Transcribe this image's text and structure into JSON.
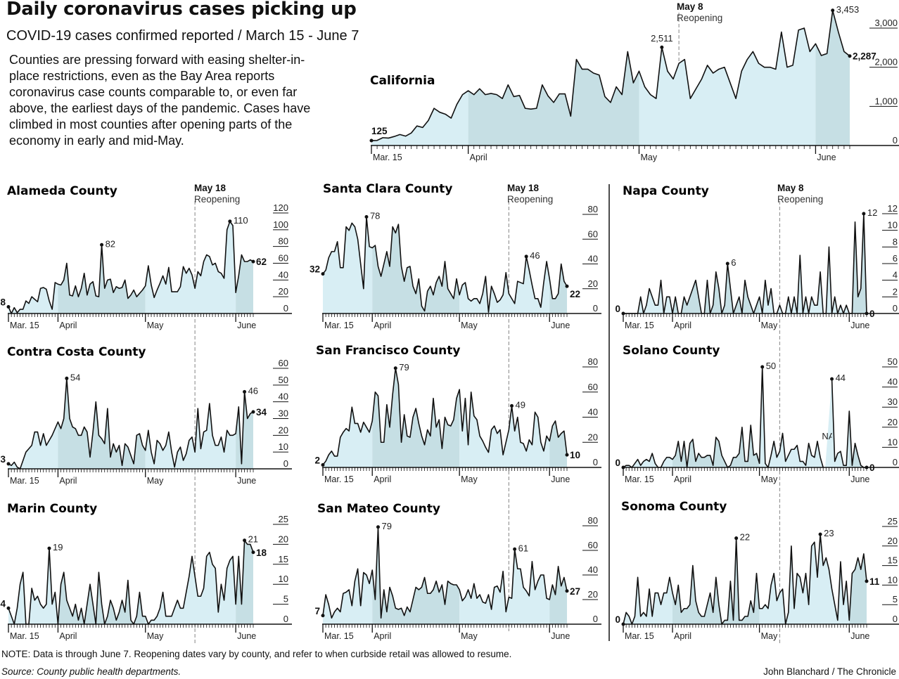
{
  "header": {
    "title": "Daily coronavirus cases picking up",
    "subtitle": "COVID-19 cases confirmed reported / March 15 - June 7",
    "intro": "Counties are pressing forward with easing shelter-in-place restrictions, even as the Bay Area reports coronavirus case counts comparable to, or even far above, the earliest days of the pandemic. Cases have climbed in most counties after opening parts of the economy in early and mid-May."
  },
  "footer": {
    "note": "NOTE: Data is through June 7. Reopening dates vary by county, and refer to when curbside retail was allowed to resume.",
    "source": "Source: County public health departments.",
    "credit": "John Blanchard / The Chronicle"
  },
  "colors": {
    "fill_light": "#d8eef4",
    "fill_dark": "#c6dfe4",
    "line": "#111111",
    "reopen_line": "#999999"
  },
  "xtick_labels": [
    "Mar. 15",
    "April",
    "May",
    "June"
  ],
  "reopening_label": "Reopening",
  "chart_data": [
    {
      "id": "california",
      "type": "area",
      "title": "California",
      "x_range": [
        "March 15",
        "June 7"
      ],
      "ylim": [
        0,
        3000
      ],
      "yticks": [
        "0",
        "1,000",
        "2,000",
        "3,000"
      ],
      "ytick_values": [
        0,
        1000,
        2000,
        3000
      ],
      "reopening": "May 8",
      "start_label": "125",
      "end_label": "2,287",
      "annotations": [
        {
          "value": 2511,
          "label": "2,511"
        },
        {
          "value": 3453,
          "label": "3,453"
        }
      ],
      "values": [
        125,
        130,
        200,
        190,
        230,
        280,
        240,
        320,
        500,
        460,
        640,
        950,
        850,
        800,
        700,
        1050,
        1300,
        1400,
        1300,
        1450,
        1300,
        1330,
        1300,
        1200,
        1550,
        1250,
        1280,
        950,
        930,
        950,
        1550,
        1270,
        1100,
        1320,
        1320,
        750,
        2200,
        1950,
        1950,
        1850,
        1800,
        1250,
        1100,
        1500,
        1300,
        2400,
        1600,
        1900,
        1500,
        1300,
        1200,
        2511,
        1900,
        1700,
        2100,
        2200,
        1200,
        1450,
        1700,
        2050,
        1850,
        1950,
        2000,
        1600,
        1200,
        1900,
        2200,
        2400,
        2100,
        2000,
        2000,
        1950,
        2900,
        2000,
        2050,
        2950,
        3000,
        2400,
        2600,
        2300,
        2350,
        3453,
        2900,
        2400,
        2287
      ]
    },
    {
      "id": "alameda",
      "type": "area",
      "title": "Alameda County",
      "x_range": [
        "March 15",
        "June 7"
      ],
      "ylim": [
        0,
        120
      ],
      "yticks": [
        "0",
        "20",
        "40",
        "60",
        "80",
        "100",
        "120"
      ],
      "ytick_values": [
        0,
        20,
        40,
        60,
        80,
        100,
        120
      ],
      "reopening": "May 18",
      "start_label": "8",
      "end_label": "62",
      "annotations": [
        {
          "value": 82,
          "label": "82"
        },
        {
          "value": 110,
          "label": "110"
        }
      ],
      "values": [
        8,
        0,
        7,
        1,
        5,
        5,
        15,
        12,
        20,
        17,
        14,
        30,
        31,
        29,
        15,
        5,
        37,
        35,
        34,
        40,
        60,
        22,
        21,
        33,
        20,
        30,
        48,
        22,
        35,
        38,
        21,
        20,
        82,
        30,
        40,
        41,
        25,
        32,
        30,
        31,
        40,
        18,
        22,
        28,
        20,
        24,
        28,
        33,
        57,
        34,
        19,
        28,
        36,
        45,
        35,
        55,
        26,
        26,
        26,
        32,
        56,
        48,
        54,
        46,
        30,
        50,
        45,
        62,
        70,
        68,
        58,
        60,
        50,
        48,
        42,
        100,
        110,
        105,
        25,
        45,
        70,
        62,
        62,
        64,
        62
      ]
    },
    {
      "id": "contra-costa",
      "type": "area",
      "title": "Contra Costa County",
      "x_range": [
        "March 15",
        "June 7"
      ],
      "ylim": [
        0,
        60
      ],
      "yticks": [
        "0",
        "10",
        "20",
        "30",
        "40",
        "50",
        "60"
      ],
      "ytick_values": [
        0,
        10,
        20,
        30,
        40,
        50,
        60
      ],
      "reopening": "May 18",
      "start_label": "3",
      "end_label": "34",
      "annotations": [
        {
          "value": 54,
          "label": "54"
        },
        {
          "value": 46,
          "label": "46"
        }
      ],
      "values": [
        3,
        2,
        4,
        1,
        0,
        5,
        10,
        12,
        14,
        22,
        22,
        14,
        21,
        14,
        17,
        20,
        24,
        28,
        24,
        30,
        54,
        30,
        25,
        24,
        20,
        20,
        25,
        22,
        7,
        22,
        40,
        20,
        18,
        15,
        36,
        7,
        15,
        10,
        14,
        2,
        15,
        13,
        8,
        3,
        20,
        21,
        14,
        11,
        23,
        10,
        3,
        17,
        15,
        11,
        14,
        22,
        10,
        1,
        10,
        13,
        5,
        9,
        17,
        19,
        10,
        36,
        12,
        22,
        23,
        39,
        20,
        14,
        14,
        19,
        10,
        23,
        20,
        20,
        21,
        37,
        3,
        46,
        30,
        33,
        34
      ]
    },
    {
      "id": "marin",
      "type": "area",
      "title": "Marin County",
      "x_range": [
        "March 15",
        "June 7"
      ],
      "ylim": [
        0,
        25
      ],
      "yticks": [
        "0",
        "5",
        "10",
        "15",
        "20",
        "25"
      ],
      "ytick_values": [
        0,
        5,
        10,
        15,
        20,
        25
      ],
      "reopening": "May 18",
      "start_label": "4",
      "end_label": "18",
      "annotations": [
        {
          "value": 19,
          "label": "19"
        },
        {
          "value": 21,
          "label": "21"
        }
      ],
      "values": [
        4,
        2,
        0,
        4,
        10,
        13,
        0,
        0,
        9,
        6,
        7,
        5,
        4,
        5,
        19,
        5,
        8,
        0,
        10,
        13,
        6,
        4,
        2,
        5,
        1,
        4,
        0,
        5,
        10,
        5,
        0,
        13,
        5,
        0,
        2,
        6,
        4,
        1,
        3,
        6,
        3,
        11,
        1,
        0,
        2,
        8,
        2,
        2,
        0,
        1,
        1,
        2,
        4,
        8,
        2,
        2,
        2,
        4,
        6,
        4,
        4,
        8,
        12,
        17,
        12,
        7,
        7,
        9,
        17,
        18,
        15,
        14,
        3,
        10,
        6,
        14,
        16,
        17,
        5,
        17,
        5,
        21,
        20,
        20,
        18
      ]
    },
    {
      "id": "santa-clara",
      "type": "area",
      "title": "Santa Clara County",
      "x_range": [
        "March 15",
        "June 7"
      ],
      "ylim": [
        0,
        80
      ],
      "yticks": [
        "0",
        "20",
        "40",
        "60",
        "80"
      ],
      "ytick_values": [
        0,
        20,
        40,
        60,
        80
      ],
      "reopening": "May 18",
      "start_label": "32",
      "end_label": "22",
      "annotations": [
        {
          "value": 78,
          "label": "78"
        },
        {
          "value": 46,
          "label": "46"
        }
      ],
      "values": [
        32,
        35,
        45,
        50,
        50,
        58,
        37,
        37,
        70,
        67,
        73,
        70,
        60,
        40,
        20,
        78,
        54,
        53,
        55,
        38,
        30,
        40,
        50,
        38,
        70,
        65,
        72,
        38,
        26,
        37,
        38,
        22,
        16,
        28,
        6,
        2,
        18,
        22,
        15,
        25,
        30,
        22,
        42,
        20,
        16,
        12,
        28,
        15,
        23,
        25,
        12,
        10,
        12,
        12,
        8,
        16,
        30,
        1,
        22,
        16,
        9,
        11,
        15,
        33,
        16,
        12,
        8,
        26,
        25,
        24,
        46,
        35,
        23,
        12,
        12,
        5,
        25,
        42,
        28,
        12,
        12,
        16,
        40,
        26,
        22
      ]
    },
    {
      "id": "san-francisco",
      "type": "area",
      "title": "San Francisco County",
      "x_range": [
        "March 15",
        "June 7"
      ],
      "ylim": [
        0,
        80
      ],
      "yticks": [
        "0",
        "20",
        "40",
        "60",
        "80"
      ],
      "ytick_values": [
        0,
        20,
        40,
        60,
        80
      ],
      "reopening": "May 18",
      "start_label": "2",
      "end_label": "10",
      "annotations": [
        {
          "value": 79,
          "label": "79"
        },
        {
          "value": 49,
          "label": "49"
        }
      ],
      "values": [
        2,
        5,
        10,
        13,
        9,
        9,
        24,
        28,
        31,
        29,
        48,
        35,
        35,
        28,
        36,
        32,
        28,
        37,
        60,
        57,
        20,
        20,
        50,
        32,
        58,
        79,
        66,
        20,
        42,
        25,
        24,
        40,
        47,
        35,
        25,
        18,
        30,
        25,
        55,
        32,
        38,
        15,
        40,
        34,
        33,
        38,
        55,
        62,
        29,
        55,
        18,
        60,
        41,
        38,
        25,
        21,
        16,
        12,
        30,
        33,
        27,
        30,
        10,
        20,
        30,
        49,
        29,
        40,
        20,
        19,
        13,
        22,
        18,
        44,
        40,
        20,
        13,
        25,
        21,
        33,
        37,
        24,
        27,
        29,
        10
      ]
    },
    {
      "id": "san-mateo",
      "type": "area",
      "title": "San Mateo County",
      "x_range": [
        "March 15",
        "June 7"
      ],
      "ylim": [
        0,
        80
      ],
      "yticks": [
        "0",
        "20",
        "40",
        "60",
        "80"
      ],
      "ytick_values": [
        0,
        20,
        40,
        60,
        80
      ],
      "reopening": "May 18",
      "start_label": "7",
      "end_label": "27",
      "annotations": [
        {
          "value": 79,
          "label": "79"
        },
        {
          "value": 61,
          "label": "61"
        }
      ],
      "values": [
        7,
        24,
        16,
        5,
        10,
        13,
        10,
        25,
        26,
        28,
        15,
        35,
        45,
        15,
        42,
        40,
        33,
        44,
        20,
        79,
        5,
        28,
        10,
        30,
        23,
        13,
        12,
        13,
        7,
        14,
        10,
        20,
        30,
        28,
        30,
        38,
        25,
        25,
        28,
        35,
        26,
        32,
        16,
        35,
        33,
        32,
        32,
        28,
        19,
        22,
        28,
        21,
        33,
        21,
        24,
        18,
        17,
        24,
        12,
        30,
        31,
        26,
        43,
        10,
        22,
        21,
        61,
        45,
        45,
        30,
        27,
        23,
        51,
        28,
        35,
        40,
        40,
        21,
        20,
        32,
        24,
        47,
        31,
        38,
        27
      ]
    },
    {
      "id": "napa",
      "type": "area",
      "title": "Napa County",
      "x_range": [
        "March 15",
        "June 7"
      ],
      "ylim": [
        0,
        12
      ],
      "yticks": [
        "0",
        "2",
        "4",
        "6",
        "8",
        "10",
        "12"
      ],
      "ytick_values": [
        0,
        2,
        4,
        6,
        8,
        10,
        12
      ],
      "reopening": "May 8",
      "start_label": "0",
      "end_label": "0",
      "annotations": [
        {
          "value": 6,
          "label": "6"
        },
        {
          "value": 12,
          "label": "12"
        }
      ],
      "values": [
        0,
        0,
        0,
        0,
        0,
        0,
        2,
        0,
        1,
        3,
        2,
        1,
        1,
        4,
        0,
        2,
        2,
        0,
        2,
        0,
        0,
        2,
        1,
        2,
        3,
        4,
        2,
        0,
        0,
        4,
        0,
        1,
        5,
        3,
        0,
        1,
        6,
        3,
        0,
        1,
        2,
        0,
        4,
        2,
        1,
        0,
        1,
        2,
        0,
        4,
        1,
        3,
        0,
        0,
        1,
        0,
        0,
        2,
        0,
        2,
        0,
        7,
        0,
        2,
        0,
        2,
        1,
        1,
        5,
        0,
        0,
        8,
        0,
        2,
        0,
        1,
        0,
        1,
        0,
        0,
        11,
        2,
        3,
        12,
        0
      ]
    },
    {
      "id": "solano",
      "type": "area",
      "title": "Solano County",
      "x_range": [
        "March 15",
        "June 7"
      ],
      "ylim": [
        0,
        50
      ],
      "yticks": [
        "0",
        "10",
        "20",
        "30",
        "40",
        "50"
      ],
      "ytick_values": [
        0,
        10,
        20,
        30,
        40,
        50
      ],
      "reopening": "May 8",
      "start_label": "0",
      "end_label": "0",
      "missing_label": "NA",
      "annotations": [
        {
          "value": 50,
          "label": "50"
        },
        {
          "value": 44,
          "label": "44"
        }
      ],
      "values": [
        0,
        1,
        1,
        0,
        2,
        4,
        1,
        3,
        4,
        3,
        7,
        2,
        0,
        0,
        3,
        5,
        5,
        4,
        6,
        13,
        3,
        13,
        0,
        12,
        14,
        3,
        7,
        5,
        5,
        6,
        6,
        1,
        15,
        13,
        6,
        3,
        0,
        1,
        5,
        5,
        7,
        20,
        3,
        3,
        21,
        6,
        7,
        2,
        50,
        2,
        0,
        6,
        13,
        5,
        8,
        17,
        3,
        6,
        9,
        9,
        11,
        3,
        3,
        1,
        12,
        6,
        5,
        13,
        5,
        0,
        null,
        null,
        44,
        3,
        7,
        8,
        1,
        1,
        28,
        1,
        12,
        6,
        1,
        0,
        0
      ]
    },
    {
      "id": "sonoma",
      "type": "area",
      "title": "Sonoma County",
      "x_range": [
        "March 15",
        "June 7"
      ],
      "ylim": [
        0,
        25
      ],
      "yticks": [
        "0",
        "5",
        "10",
        "15",
        "20",
        "25"
      ],
      "ytick_values": [
        0,
        5,
        10,
        15,
        20,
        25
      ],
      "reopening": "May 8",
      "start_label": "0",
      "end_label": "11",
      "annotations": [
        {
          "value": 22,
          "label": "22"
        },
        {
          "value": 23,
          "label": "23"
        }
      ],
      "values": [
        0,
        3,
        2,
        0,
        2,
        12,
        2,
        3,
        2,
        9,
        2,
        8,
        8,
        5,
        8,
        8,
        12,
        8,
        5,
        10,
        3,
        4,
        4,
        5,
        15,
        6,
        3,
        2,
        2,
        5,
        8,
        3,
        12,
        5,
        0,
        1,
        1,
        11,
        1,
        22,
        1,
        1,
        2,
        2,
        6,
        3,
        13,
        4,
        4,
        5,
        4,
        10,
        13,
        6,
        8,
        9,
        0,
        3,
        20,
        4,
        13,
        12,
        8,
        13,
        5,
        20,
        21,
        12,
        23,
        15,
        17,
        14,
        9,
        5,
        1,
        16,
        5,
        11,
        1,
        13,
        14,
        17,
        14,
        18,
        11
      ]
    }
  ]
}
